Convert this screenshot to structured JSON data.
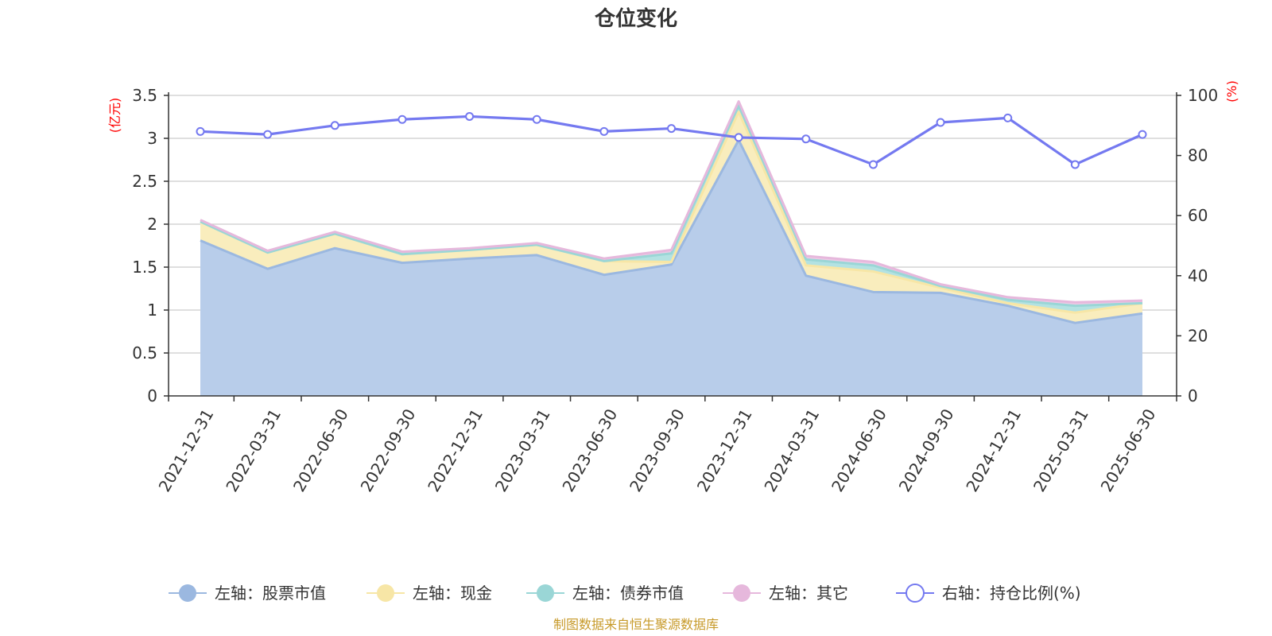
{
  "chart_data": {
    "type": "area",
    "title": "仓位变化",
    "left_axis_unit": "(亿元)",
    "right_axis_unit": "(%)",
    "categories": [
      "2021-12-31",
      "2022-03-31",
      "2022-06-30",
      "2022-09-30",
      "2022-12-31",
      "2023-03-31",
      "2023-06-30",
      "2023-09-30",
      "2023-12-31",
      "2024-03-31",
      "2024-06-30",
      "2024-09-30",
      "2024-12-31",
      "2025-03-31",
      "2025-06-30"
    ],
    "left_ylim": [
      0,
      3.5
    ],
    "left_ticks": [
      "0",
      "0.5",
      "1",
      "1.5",
      "2",
      "2.5",
      "3",
      "3.5"
    ],
    "right_ylim": [
      0,
      100
    ],
    "right_ticks": [
      "0",
      "20",
      "40",
      "60",
      "80",
      "100"
    ],
    "grid": true,
    "legend_position": "bottom",
    "series": [
      {
        "name": "左轴：股票市值",
        "axis": "left",
        "stack": true,
        "color": "#9bb8e0",
        "fill": "#b8cdea",
        "values": [
          1.81,
          1.48,
          1.72,
          1.55,
          1.6,
          1.64,
          1.41,
          1.53,
          2.98,
          1.4,
          1.21,
          1.2,
          1.05,
          0.85,
          0.96
        ]
      },
      {
        "name": "左轴：现金",
        "axis": "left",
        "stack": true,
        "color": "#f7e6a6",
        "fill": "#f9edbd",
        "values": [
          0.22,
          0.19,
          0.17,
          0.1,
          0.1,
          0.12,
          0.16,
          0.03,
          0.33,
          0.12,
          0.24,
          0.06,
          0.03,
          0.12,
          0.12
        ]
      },
      {
        "name": "左轴：债券市值",
        "axis": "left",
        "stack": true,
        "color": "#9ad6d6",
        "fill": "#b3e2e2",
        "values": [
          0.0,
          0.0,
          0.0,
          0.0,
          0.0,
          0.0,
          0.0,
          0.1,
          0.07,
          0.07,
          0.07,
          0.02,
          0.04,
          0.08,
          0.0
        ]
      },
      {
        "name": "左轴：其它",
        "axis": "left",
        "stack": true,
        "color": "#e6b8dc",
        "fill": "#efcbe6",
        "values": [
          0.02,
          0.02,
          0.02,
          0.03,
          0.02,
          0.02,
          0.03,
          0.04,
          0.05,
          0.04,
          0.04,
          0.02,
          0.03,
          0.04,
          0.03
        ]
      },
      {
        "name": "右轴：持仓比例(%)",
        "axis": "right",
        "type": "line",
        "color": "#7479f0",
        "values": [
          88,
          87,
          90,
          92,
          93,
          92,
          88,
          89,
          86,
          85.5,
          77,
          91,
          92.5,
          77,
          87
        ]
      }
    ]
  },
  "source_note": "制图数据来自恒生聚源数据库"
}
